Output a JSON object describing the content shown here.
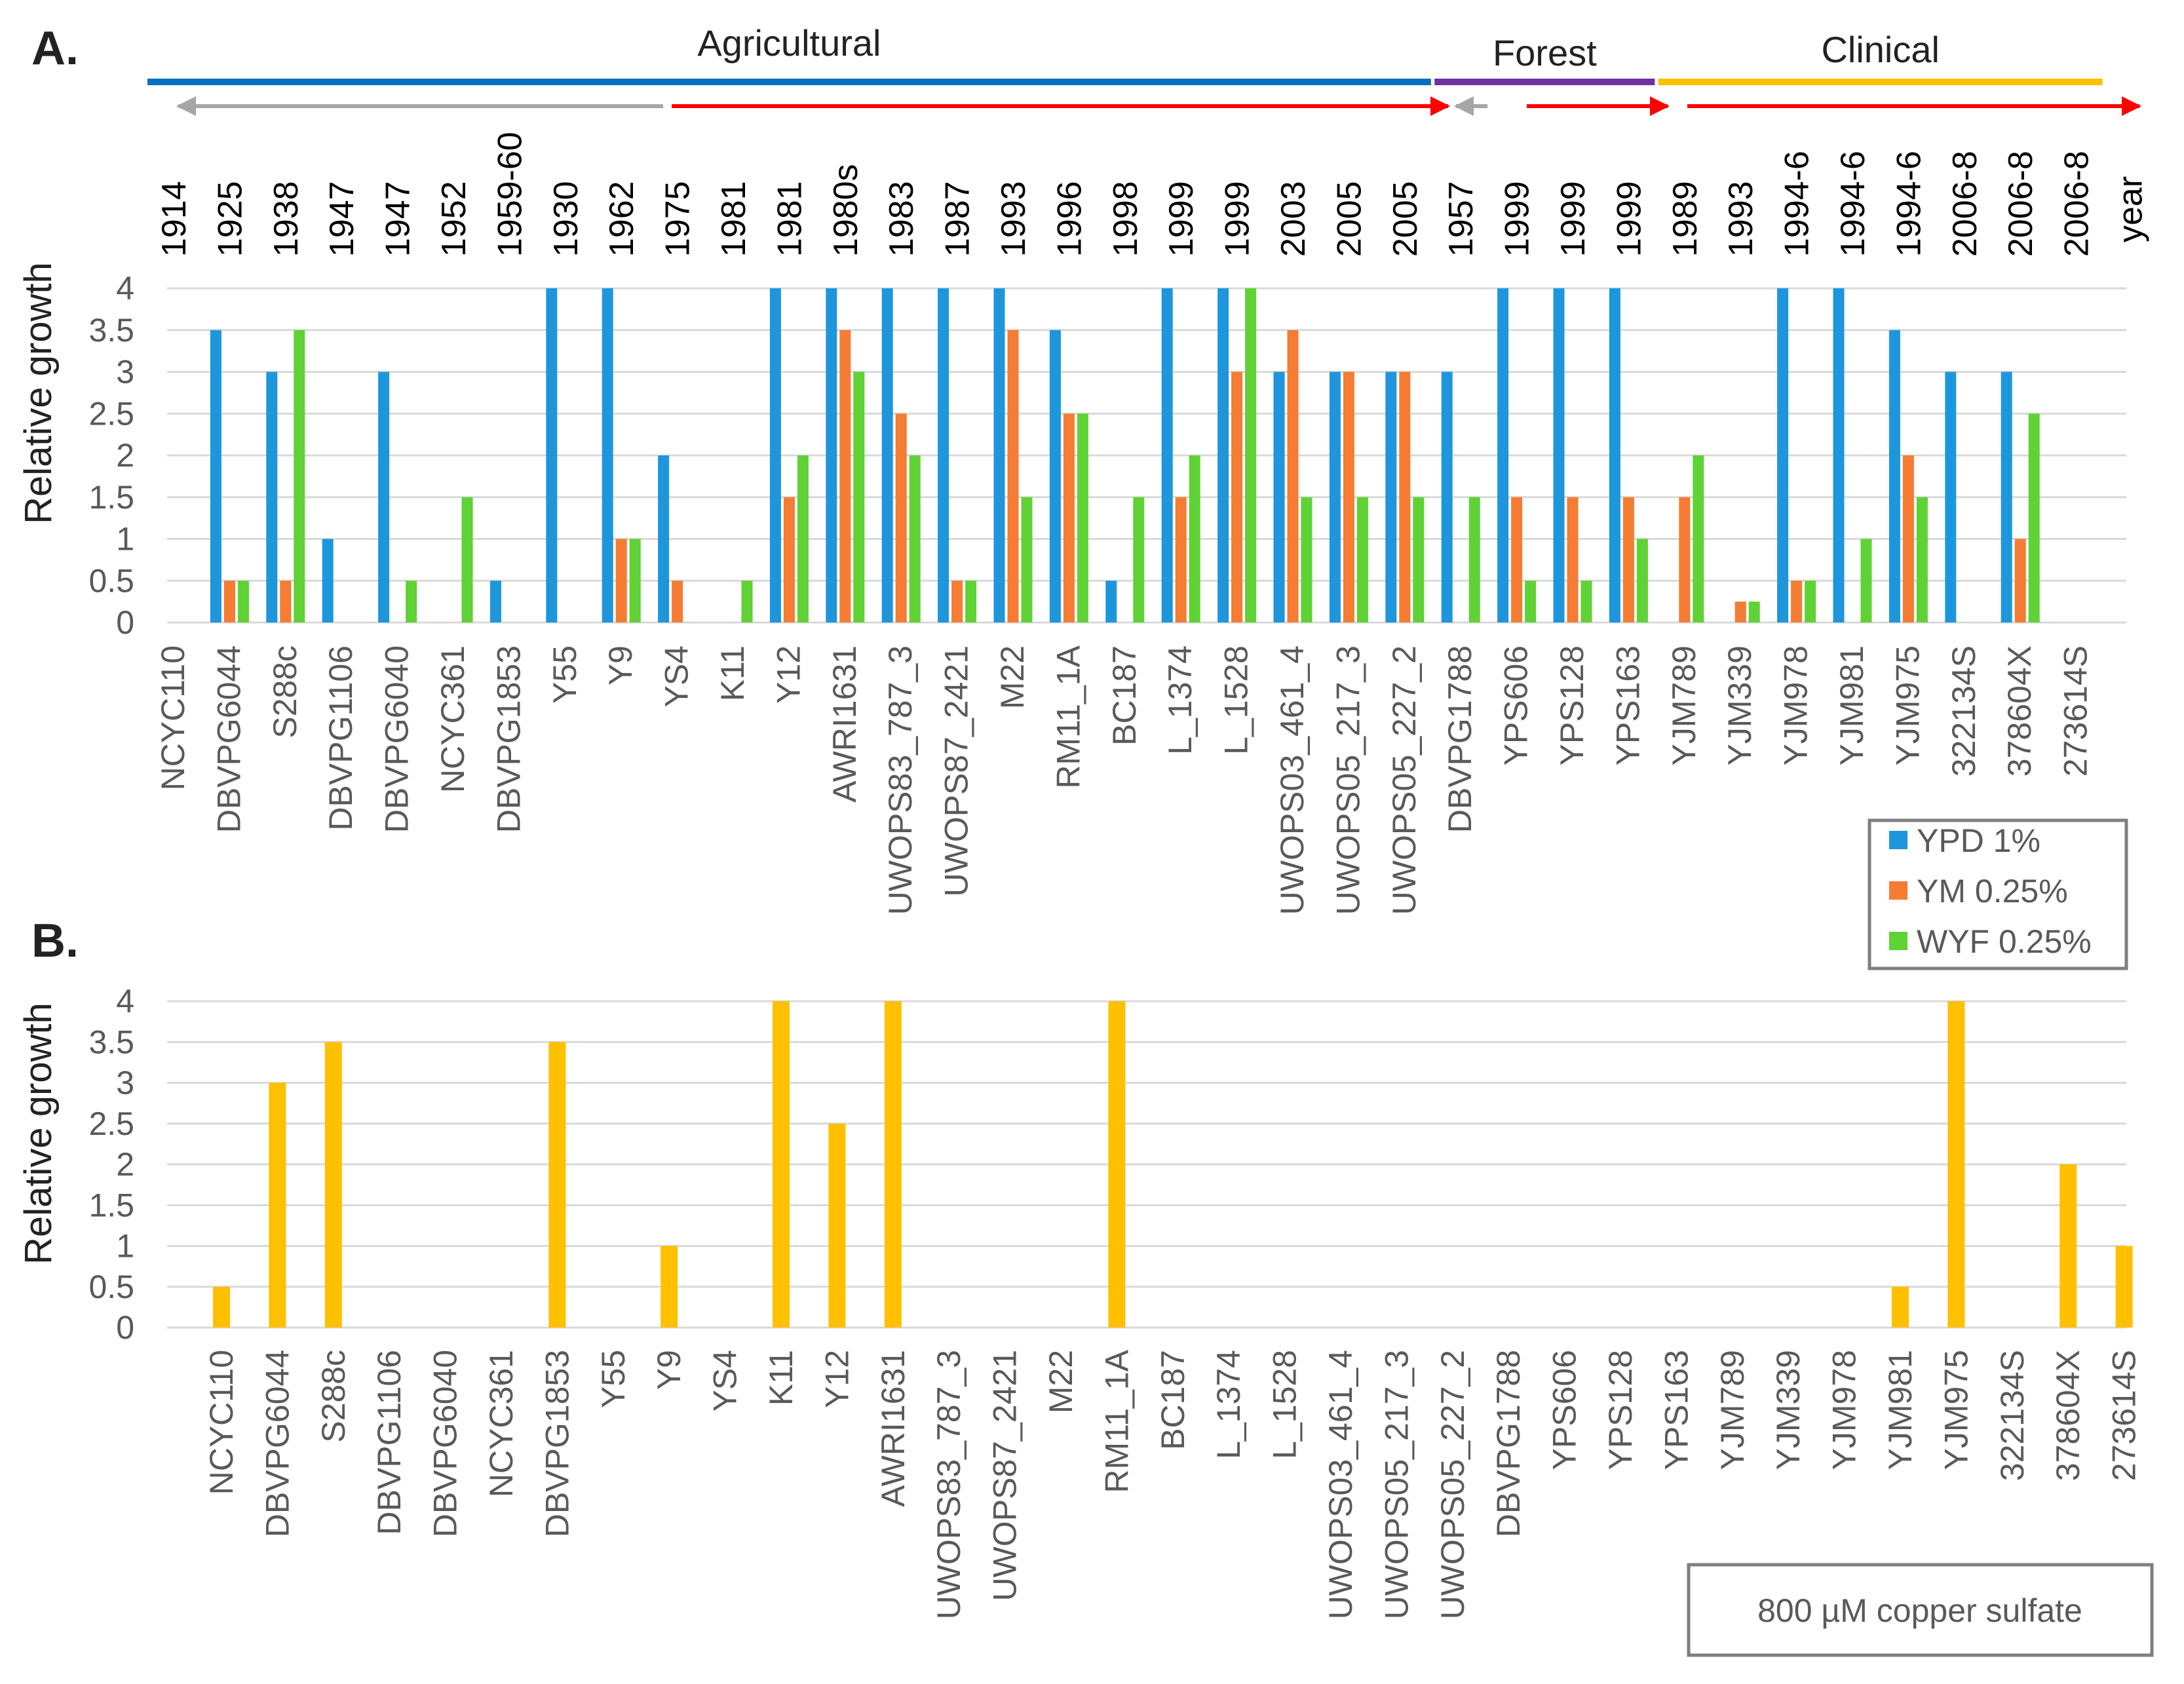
{
  "colors": {
    "ypd": "#1e96dc",
    "ym": "#f57c32",
    "wyf": "#5fd236",
    "copper": "#ffc000",
    "agricultural": "#0070c0",
    "forest": "#7030a0",
    "clinical": "#ffc000",
    "arrow_red": "#ff0000",
    "arrow_grey": "#a6a6a6"
  },
  "panel_a": {
    "label": "A."
  },
  "panel_b": {
    "label": "B."
  },
  "groups": [
    {
      "name": "Agricultural",
      "start": 0,
      "end": 22
    },
    {
      "name": "Forest",
      "start": 23,
      "end": 26
    },
    {
      "name": "Clinical",
      "start": 27,
      "end": 34
    }
  ],
  "year_axis_label": "year",
  "years": [
    "1914",
    "1925",
    "1938",
    "1947",
    "1947",
    "1952",
    "1959-60",
    "1930",
    "1962",
    "1975",
    "1981",
    "1981",
    "1980s",
    "1983",
    "1987",
    "1993",
    "1996",
    "1998",
    "1999",
    "1999",
    "2003",
    "2005",
    "2005",
    "1957",
    "1999",
    "1999",
    "1999",
    "1989",
    "1993",
    "1994-6",
    "1994-6",
    "1994-6",
    "2006-8",
    "2006-8",
    "2006-8"
  ],
  "chart_data": [
    {
      "type": "bar",
      "panel": "A",
      "ylabel": "Relative  growth",
      "ylim": [
        0,
        4
      ],
      "yticks": [
        "0",
        "0.5",
        "1",
        "1.5",
        "2",
        "2.5",
        "3",
        "3.5",
        "4"
      ],
      "categories": [
        "NCYC110",
        "DBVPG6044",
        "S288c",
        "DBVPG1106",
        "DBVPG6040",
        "NCYC361",
        "DBVPG1853",
        "Y55",
        "Y9",
        "YS4",
        "K11",
        "Y12",
        "AWRI1631",
        "UWOPS83_787_3",
        "UWOPS87_2421",
        "M22",
        "RM11_1A",
        "BC187",
        "L_1374",
        "L_1528",
        "UWOPS03_461_4",
        "UWOPS05_217_3",
        "UWOPS05_227_2",
        "DBVPG1788",
        "YPS606",
        "YPS128",
        "YPS163",
        "YJM789",
        "YJM339",
        "YJM978",
        "YJM981",
        "YJM975",
        "322134S",
        "378604X",
        "273614S"
      ],
      "series": [
        {
          "name": "YPD 1%",
          "values": [
            0,
            3.5,
            3,
            1,
            3,
            0,
            0.5,
            4,
            4,
            2,
            0,
            4,
            4,
            4,
            4,
            4,
            3.5,
            0.5,
            4,
            4,
            3,
            3,
            3,
            3,
            4,
            4,
            4,
            0,
            0,
            4,
            4,
            3.5,
            3,
            3,
            0
          ]
        },
        {
          "name": "YM 0.25%",
          "values": [
            0,
            0.5,
            0.5,
            0,
            0,
            0,
            0,
            0,
            1,
            0.5,
            0,
            1.5,
            3.5,
            2.5,
            0.5,
            3.5,
            2.5,
            0,
            1.5,
            3,
            3.5,
            3,
            3,
            0,
            1.5,
            1.5,
            1.5,
            1.5,
            0.25,
            0.5,
            0,
            2,
            0,
            1,
            0
          ]
        },
        {
          "name": "WYF 0.25%",
          "values": [
            0,
            0.5,
            3.5,
            0,
            0.5,
            1.5,
            0,
            0,
            1,
            0,
            0.5,
            2,
            3,
            2,
            0.5,
            1.5,
            2.5,
            1.5,
            2,
            4,
            1.5,
            1.5,
            1.5,
            1.5,
            0.5,
            0.5,
            1,
            2,
            0.25,
            0.5,
            1,
            1.5,
            0,
            2.5,
            0
          ]
        }
      ],
      "legend": [
        "YPD 1%",
        "YM 0.25%",
        "WYF 0.25%"
      ],
      "legend_position": "right"
    },
    {
      "type": "bar",
      "panel": "B",
      "ylabel": "Relative  growth",
      "ylim": [
        0,
        4
      ],
      "yticks": [
        "0",
        "0.5",
        "1",
        "1.5",
        "2",
        "2.5",
        "3",
        "3.5",
        "4"
      ],
      "categories": [
        "NCYC110",
        "DBVPG6044",
        "S288c",
        "DBVPG1106",
        "DBVPG6040",
        "NCYC361",
        "DBVPG1853",
        "Y55",
        "Y9",
        "YS4",
        "K11",
        "Y12",
        "AWRI1631",
        "UWOPS83_787_3",
        "UWOPS87_2421",
        "M22",
        "RM11_1A",
        "BC187",
        "L_1374",
        "L_1528",
        "UWOPS03_461_4",
        "UWOPS05_217_3",
        "UWOPS05_227_2",
        "DBVPG1788",
        "YPS606",
        "YPS128",
        "YPS163",
        "YJM789",
        "YJM339",
        "YJM978",
        "YJM981",
        "YJM975",
        "322134S",
        "378604X",
        "273614S"
      ],
      "series": [
        {
          "name": "800 µM copper sulfate",
          "values": [
            0.5,
            3,
            3.5,
            0,
            0,
            0,
            3.5,
            0,
            1,
            0,
            4,
            2.5,
            4,
            0,
            0,
            0,
            4,
            0,
            0,
            0,
            0,
            0,
            0,
            0,
            0,
            0,
            0,
            0,
            0,
            0,
            0.5,
            4,
            0,
            2,
            1
          ]
        }
      ],
      "legend": [
        "800 µM copper sulfate"
      ],
      "legend_position": "bottom-right"
    }
  ]
}
